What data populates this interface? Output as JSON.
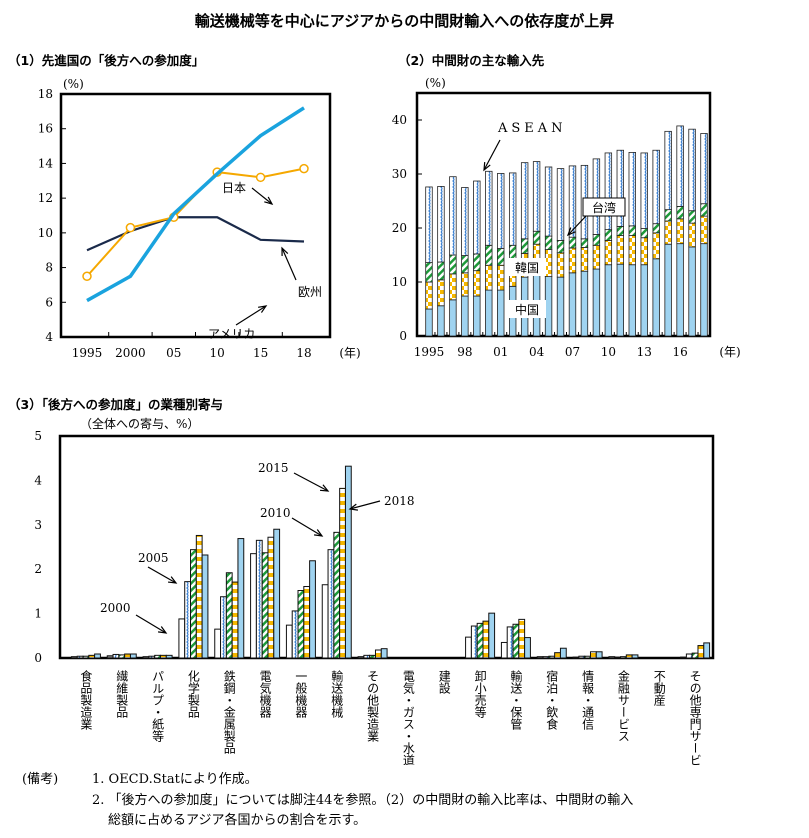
{
  "title": "輸送機械等を中心にアジアからの中間財輸入への依存度が上昇",
  "notes": {
    "label": "(備考)",
    "items": [
      "1. OECD.Statにより作成。",
      "2. 「後方への参加度」については脚注44を参照。（2）の中間財の輸入比率は、中間財の輸入",
      "総額に占めるアジア各国からの割合を示す。"
    ]
  },
  "colors": {
    "japan": "#1aa3de",
    "europe": "#f5a800",
    "america": "#1a2a4a",
    "china": "#9fd3f0",
    "korea": "#f5b700",
    "taiwan": "#1e9a3a",
    "asean": "#3a7fd0"
  },
  "chart_data": [
    {
      "type": "line",
      "title": "（1）先進国の「後方への参加度」",
      "ylabel": "(%)",
      "xlabel": "(年)",
      "ylim": [
        4,
        18
      ],
      "yticks": [
        4,
        6,
        8,
        10,
        12,
        14,
        16,
        18
      ],
      "x": [
        "1995",
        "2000",
        "05",
        "10",
        "15",
        "18"
      ],
      "series": [
        {
          "name": "日本",
          "values": [
            6.1,
            7.5,
            11.1,
            13.4,
            15.6,
            17.2
          ]
        },
        {
          "name": "欧州",
          "values": [
            7.5,
            10.3,
            10.9,
            13.5,
            13.2,
            13.7
          ]
        },
        {
          "name": "アメリカ",
          "values": [
            9.0,
            10.1,
            10.9,
            10.9,
            9.6,
            9.5
          ]
        }
      ],
      "legend": "inline-labels"
    },
    {
      "type": "bar",
      "stacked": true,
      "title": "（2）中間財の主な輸入先",
      "ylabel": "(%)",
      "xlabel": "(年)",
      "ylim": [
        0,
        45
      ],
      "yticks": [
        0,
        10,
        20,
        30,
        40
      ],
      "categories": [
        "1995",
        "1996",
        "1997",
        "1998",
        "1999",
        "2000",
        "2001",
        "2002",
        "2003",
        "2004",
        "2005",
        "2006",
        "2007",
        "2008",
        "2009",
        "2010",
        "2011",
        "2012",
        "2013",
        "2014",
        "2015",
        "2016",
        "2017",
        "2018"
      ],
      "xtick_labels": [
        "1995",
        "98",
        "01",
        "04",
        "07",
        "10",
        "13",
        "16"
      ],
      "series": [
        {
          "name": "中国",
          "values": [
            5.0,
            5.6,
            6.7,
            7.4,
            7.4,
            8.5,
            8.5,
            9.2,
            10.9,
            12.0,
            11.0,
            10.9,
            11.7,
            12.0,
            12.4,
            13.2,
            13.3,
            13.2,
            13.2,
            14.3,
            17.0,
            17.1,
            16.5,
            17.1
          ]
        },
        {
          "name": "韓国",
          "values": [
            5.0,
            4.8,
            4.8,
            4.3,
            4.7,
            4.6,
            4.6,
            4.6,
            4.4,
            5.0,
            5.0,
            4.5,
            4.6,
            4.4,
            4.4,
            4.5,
            5.3,
            5.4,
            5.0,
            4.8,
            4.3,
            4.6,
            4.4,
            5.1
          ]
        },
        {
          "name": "台湾",
          "values": [
            3.6,
            3.3,
            3.5,
            3.2,
            3.1,
            3.7,
            3.1,
            3.0,
            2.7,
            2.4,
            2.5,
            2.3,
            2.0,
            1.6,
            2.0,
            2.0,
            1.7,
            1.8,
            1.7,
            1.7,
            2.1,
            2.3,
            2.3,
            2.3
          ]
        },
        {
          "name": "ASEAN",
          "values": [
            14.0,
            14.0,
            14.5,
            12.6,
            13.5,
            13.7,
            13.9,
            13.4,
            14.1,
            12.9,
            12.8,
            13.3,
            13.2,
            13.6,
            14.0,
            14.2,
            14.1,
            13.6,
            14.0,
            13.6,
            14.5,
            14.9,
            15.1,
            13.0
          ]
        }
      ],
      "legend": "inline-labels"
    },
    {
      "type": "bar",
      "title": "（3）「後方への参加度」の業種別寄与",
      "ylabel": "（全体への寄与、%）",
      "ylim": [
        0,
        5
      ],
      "yticks": [
        0,
        1,
        2,
        3,
        4,
        5
      ],
      "categories": [
        "食品製造業",
        "繊維製品",
        "パルプ・紙等",
        "化学製品",
        "鉄鋼・金属製品",
        "電気機器",
        "一般機器",
        "輸送機械",
        "その他製造業",
        "電気・ガス・水道",
        "建設",
        "卸小売等",
        "輸送・保管",
        "宿泊・飲食",
        "情報・通信",
        "金融サービス",
        "不動産",
        "その他専門サービス"
      ],
      "series": [
        {
          "name": "2000",
          "values": [
            0.03,
            0.05,
            0.03,
            0.88,
            0.65,
            2.35,
            0.74,
            1.65,
            0.03,
            0.0,
            0.0,
            0.47,
            0.35,
            0.03,
            0.02,
            0.03,
            0.0,
            0.02
          ]
        },
        {
          "name": "2005",
          "values": [
            0.04,
            0.08,
            0.04,
            1.72,
            1.38,
            2.65,
            1.06,
            2.44,
            0.06,
            0.0,
            0.0,
            0.72,
            0.7,
            0.03,
            0.04,
            0.02,
            0.0,
            0.09
          ]
        },
        {
          "name": "2010",
          "values": [
            0.04,
            0.07,
            0.06,
            2.44,
            1.92,
            2.37,
            1.52,
            2.83,
            0.06,
            0.0,
            0.0,
            0.78,
            0.76,
            0.04,
            0.04,
            0.03,
            0.0,
            0.11
          ]
        },
        {
          "name": "2015",
          "values": [
            0.06,
            0.09,
            0.06,
            2.76,
            1.71,
            2.72,
            1.61,
            3.82,
            0.18,
            0.0,
            0.0,
            0.83,
            0.87,
            0.12,
            0.14,
            0.07,
            0.0,
            0.28
          ]
        },
        {
          "name": "2018",
          "values": [
            0.09,
            0.09,
            0.06,
            2.32,
            2.69,
            2.9,
            2.19,
            4.32,
            0.21,
            0.0,
            0.0,
            1.01,
            0.46,
            0.22,
            0.14,
            0.07,
            0.0,
            0.34
          ]
        }
      ],
      "legend": "inline-labels"
    }
  ]
}
